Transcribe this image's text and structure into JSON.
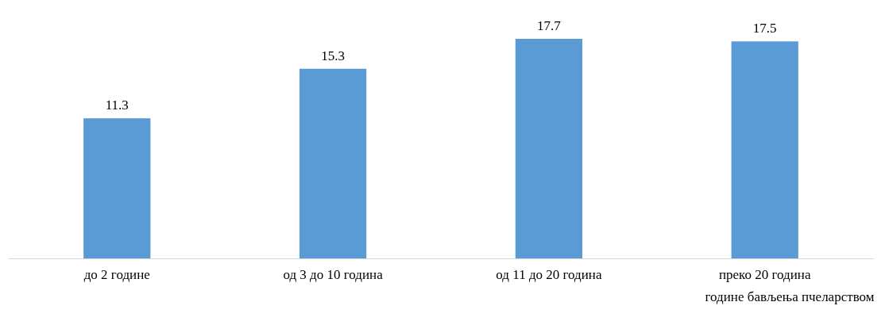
{
  "chart_data": {
    "type": "bar",
    "xlabel": "године бављења пчеларством",
    "categories": [
      "до 2 године",
      "од 3 до 10 година",
      "од 11 до 20 година",
      "преко 20 година"
    ],
    "values": [
      11.3,
      15.3,
      17.7,
      17.5
    ],
    "color": "#5b9bd5",
    "data_labels": true
  }
}
